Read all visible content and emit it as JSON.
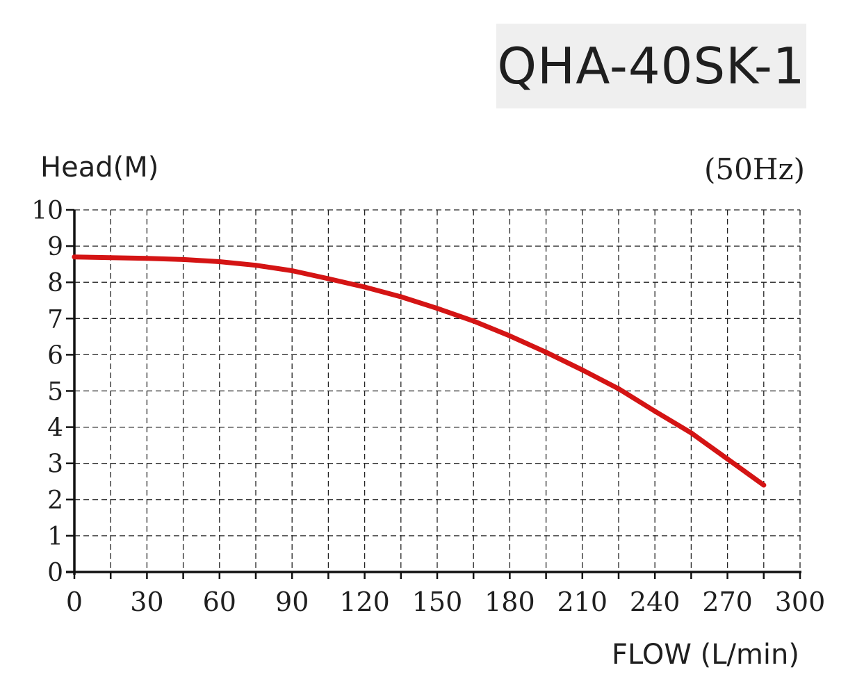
{
  "model": "QHA-40SK-1",
  "colors": {
    "curve": "#d41414",
    "axis": "#111111",
    "grid": "#222222",
    "box": "#efefef",
    "text": "#1f1f1f"
  },
  "chart_data": {
    "type": "line",
    "title": "",
    "ylabel": "Head(M)",
    "xlabel": "FLOW (L/min)",
    "frequency": "(50Hz)",
    "xlim": [
      0,
      300
    ],
    "ylim": [
      0,
      10
    ],
    "xticks": [
      0,
      30,
      60,
      90,
      120,
      150,
      180,
      210,
      240,
      270,
      300
    ],
    "yticks": [
      0,
      1,
      2,
      3,
      4,
      5,
      6,
      7,
      8,
      9,
      10
    ],
    "grid": true,
    "grid_style": "dashed",
    "series": [
      {
        "x": [
          0,
          15,
          30,
          45,
          60,
          75,
          90,
          105,
          120,
          135,
          150,
          165,
          180,
          195,
          210,
          225,
          240,
          255,
          270,
          285
        ],
        "y": [
          8.7,
          8.68,
          8.66,
          8.63,
          8.57,
          8.47,
          8.32,
          8.1,
          7.87,
          7.6,
          7.28,
          6.93,
          6.52,
          6.07,
          5.58,
          5.06,
          4.44,
          3.84,
          3.12,
          2.4
        ]
      }
    ]
  }
}
